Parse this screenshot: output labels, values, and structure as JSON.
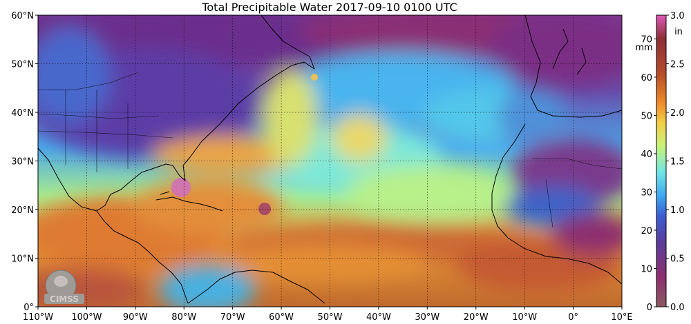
{
  "title": "Total Precipitable Water  2017-09-10 0100 UTC",
  "lat_labels": [
    "60°N",
    "50°N",
    "40°N",
    "30°N",
    "20°N",
    "10°N",
    "0°"
  ],
  "lon_labels": [
    "110°W",
    "100°W",
    "90°W",
    "80°W",
    "70°W",
    "60°W",
    "50°W",
    "40°W",
    "30°W",
    "20°W",
    "10°W",
    "0°",
    "10°E"
  ],
  "extent": {
    "lon_min": -110,
    "lon_max": 10,
    "lat_min": 0,
    "lat_max": 60
  },
  "colorbar": {
    "mm_unit": "mm",
    "in_unit": "in",
    "mm_ticks": [
      "0",
      "10",
      "20",
      "30",
      "40",
      "50",
      "60",
      "70"
    ],
    "in_ticks": [
      "0.0",
      "0.5",
      "1.0",
      "1.5",
      "2.0",
      "2.5",
      "3.0"
    ],
    "colors": [
      "#8a5a62",
      "#8e2f6e",
      "#5a3c99",
      "#3c5cd0",
      "#3fa6f0",
      "#6fe6e6",
      "#c9f27a",
      "#f2cf47",
      "#ef8a2a",
      "#b54c2a",
      "#8c2f36",
      "#e05ab8"
    ]
  },
  "logo_text": "CIMSS"
}
